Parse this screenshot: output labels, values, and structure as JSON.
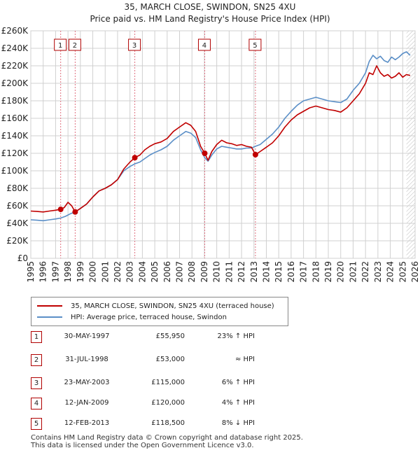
{
  "header": {
    "title": "35, MARCH CLOSE, SWINDON, SN25 4XU",
    "subtitle": "Price paid vs. HM Land Registry's House Price Index (HPI)"
  },
  "legend": {
    "property_label": "35, MARCH CLOSE, SWINDON, SN25 4XU (terraced house)",
    "hpi_label": "HPI: Average price, terraced house, Swindon"
  },
  "transactions": [
    {
      "num": "1",
      "date": "30-MAY-1997",
      "price": "£55,950",
      "hpi": "23% ↑ HPI"
    },
    {
      "num": "2",
      "date": "31-JUL-1998",
      "price": "£53,000",
      "hpi": "≈ HPI"
    },
    {
      "num": "3",
      "date": "23-MAY-2003",
      "price": "£115,000",
      "hpi": "6% ↑ HPI"
    },
    {
      "num": "4",
      "date": "12-JAN-2009",
      "price": "£120,000",
      "hpi": "4% ↑ HPI"
    },
    {
      "num": "5",
      "date": "12-FEB-2013",
      "price": "£118,500",
      "hpi": "8% ↓ HPI"
    }
  ],
  "footer": {
    "line1": "Contains HM Land Registry data © Crown copyright and database right 2025.",
    "line2": "This data is licensed under the Open Government Licence v3.0."
  },
  "colors": {
    "property": "#c00000",
    "hpi": "#5b8fc7",
    "grid": "#d0d0d0",
    "marker_line": "#e07080"
  },
  "chart_data": {
    "type": "line",
    "xlim": [
      1995,
      2026
    ],
    "ylim": [
      0,
      260000
    ],
    "x_ticks": [
      "1995",
      "1996",
      "1997",
      "1998",
      "1999",
      "2000",
      "2001",
      "2002",
      "2003",
      "2004",
      "2005",
      "2006",
      "2007",
      "2008",
      "2009",
      "2010",
      "2011",
      "2012",
      "2013",
      "2014",
      "2015",
      "2016",
      "2017",
      "2018",
      "2019",
      "2020",
      "2021",
      "2022",
      "2023",
      "2024",
      "2025",
      "2026"
    ],
    "y_ticks": [
      {
        "value": 0,
        "label": "£0"
      },
      {
        "value": 20000,
        "label": "£20K"
      },
      {
        "value": 40000,
        "label": "£40K"
      },
      {
        "value": 60000,
        "label": "£60K"
      },
      {
        "value": 80000,
        "label": "£80K"
      },
      {
        "value": 100000,
        "label": "£100K"
      },
      {
        "value": 120000,
        "label": "£120K"
      },
      {
        "value": 140000,
        "label": "£140K"
      },
      {
        "value": 160000,
        "label": "£160K"
      },
      {
        "value": 180000,
        "label": "£180K"
      },
      {
        "value": 200000,
        "label": "£200K"
      },
      {
        "value": 220000,
        "label": "£220K"
      },
      {
        "value": 240000,
        "label": "£240K"
      },
      {
        "value": 260000,
        "label": "£260K"
      }
    ],
    "series": [
      {
        "name": "35, MARCH CLOSE, SWINDON, SN25 4XU (terraced house)",
        "x": [
          1995.0,
          1995.5,
          1996.0,
          1996.5,
          1997.0,
          1997.41,
          1997.7,
          1998.0,
          1998.3,
          1998.58,
          1999.0,
          1999.5,
          2000.0,
          2000.5,
          2001.0,
          2001.5,
          2002.0,
          2002.5,
          2003.0,
          2003.39,
          2003.8,
          2004.2,
          2004.6,
          2005.0,
          2005.5,
          2006.0,
          2006.5,
          2007.0,
          2007.5,
          2007.9,
          2008.3,
          2008.7,
          2009.03,
          2009.3,
          2009.6,
          2010.0,
          2010.4,
          2010.8,
          2011.2,
          2011.6,
          2012.0,
          2012.4,
          2012.8,
          2013.12,
          2013.5,
          2014.0,
          2014.5,
          2015.0,
          2015.5,
          2016.0,
          2016.5,
          2017.0,
          2017.5,
          2018.0,
          2018.5,
          2019.0,
          2019.5,
          2020.0,
          2020.5,
          2021.0,
          2021.5,
          2022.0,
          2022.3,
          2022.6,
          2022.9,
          2023.2,
          2023.5,
          2023.8,
          2024.1,
          2024.4,
          2024.7,
          2025.0,
          2025.3,
          2025.6
        ],
        "values": [
          54000,
          53500,
          53000,
          54000,
          55000,
          55950,
          58000,
          64000,
          60000,
          53000,
          57000,
          62000,
          70000,
          77000,
          80000,
          84000,
          90000,
          102000,
          110000,
          115000,
          118000,
          124000,
          128000,
          131000,
          133000,
          137000,
          145000,
          150000,
          155000,
          152000,
          145000,
          128000,
          120000,
          112000,
          122000,
          130000,
          135000,
          132000,
          131000,
          129000,
          130000,
          128000,
          127000,
          118500,
          122000,
          127000,
          132000,
          140000,
          150000,
          158000,
          164000,
          168000,
          172000,
          174000,
          172000,
          170000,
          169000,
          167000,
          172000,
          180000,
          188000,
          200000,
          212000,
          210000,
          220000,
          212000,
          208000,
          210000,
          206000,
          208000,
          212000,
          207000,
          210000,
          209000
        ]
      },
      {
        "name": "HPI: Average price, terraced house, Swindon",
        "x": [
          1995.0,
          1995.5,
          1996.0,
          1996.5,
          1997.0,
          1997.41,
          1997.8,
          1998.2,
          1998.58,
          1999.0,
          1999.5,
          2000.0,
          2000.5,
          2001.0,
          2001.5,
          2002.0,
          2002.5,
          2003.0,
          2003.4,
          2003.8,
          2004.2,
          2004.6,
          2005.0,
          2005.5,
          2006.0,
          2006.5,
          2007.0,
          2007.5,
          2007.9,
          2008.3,
          2008.7,
          2009.03,
          2009.3,
          2009.6,
          2010.0,
          2010.4,
          2010.8,
          2011.2,
          2011.6,
          2012.0,
          2012.4,
          2012.8,
          2013.12,
          2013.5,
          2014.0,
          2014.5,
          2015.0,
          2015.5,
          2016.0,
          2016.5,
          2017.0,
          2017.5,
          2018.0,
          2018.5,
          2019.0,
          2019.5,
          2020.0,
          2020.5,
          2021.0,
          2021.5,
          2022.0,
          2022.3,
          2022.6,
          2022.9,
          2023.2,
          2023.5,
          2023.8,
          2024.1,
          2024.4,
          2024.7,
          2025.0,
          2025.3,
          2025.6
        ],
        "values": [
          44000,
          43500,
          43000,
          44000,
          45000,
          46000,
          48000,
          51000,
          53000,
          57000,
          62000,
          70000,
          77000,
          80000,
          84000,
          90000,
          100000,
          105000,
          108000,
          110000,
          114000,
          118000,
          121000,
          124000,
          128000,
          135000,
          140000,
          145000,
          143000,
          138000,
          124000,
          115000,
          111000,
          118000,
          125000,
          128000,
          127000,
          126000,
          125000,
          125000,
          126000,
          126000,
          128000,
          130000,
          136000,
          142000,
          150000,
          160000,
          168000,
          175000,
          180000,
          182000,
          184000,
          182000,
          180000,
          179000,
          178000,
          182000,
          192000,
          200000,
          212000,
          225000,
          232000,
          228000,
          231000,
          226000,
          224000,
          230000,
          227000,
          230000,
          234000,
          236000,
          232000
        ]
      }
    ],
    "sales": [
      {
        "num": "1",
        "x": 1997.41,
        "value": 55950
      },
      {
        "num": "2",
        "x": 1998.58,
        "value": 53000
      },
      {
        "num": "3",
        "x": 2003.39,
        "value": 115000
      },
      {
        "num": "4",
        "x": 2009.03,
        "value": 120000
      },
      {
        "num": "5",
        "x": 2013.12,
        "value": 118500
      }
    ]
  }
}
